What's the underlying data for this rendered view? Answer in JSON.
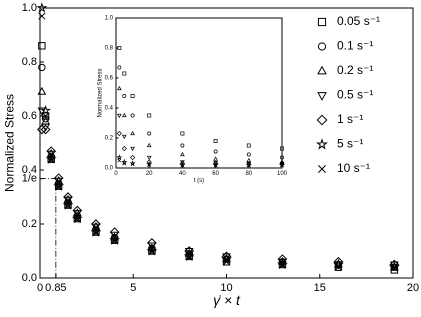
{
  "chart_data": [
    {
      "type": "scatter",
      "xlabel": "γ̇ × t",
      "ylabel": "Normalized Stress",
      "x": [
        0.1,
        0.3,
        0.6,
        1,
        1.5,
        2,
        3,
        4,
        6,
        8,
        10,
        13,
        16,
        19
      ],
      "xlim": [
        0,
        20
      ],
      "xticks": [
        0,
        0.85,
        5,
        10,
        15,
        20
      ],
      "ylim": [
        0,
        1.0
      ],
      "yticks": [
        {
          "value": 0,
          "label": "0.0"
        },
        {
          "value": 0.2,
          "label": "0.2"
        },
        {
          "value": 0.368,
          "label": "1/e"
        },
        {
          "value": 0.4,
          "label": "0.4"
        },
        {
          "value": 0.6,
          "label": "0.6"
        },
        {
          "value": 0.8,
          "label": "0.8"
        },
        {
          "value": 1.0,
          "label": "1.0"
        }
      ],
      "legend": "upper right",
      "series": [
        {
          "name": "0.05 s⁻¹",
          "marker": "square",
          "color": "#000",
          "values": [
            0.86,
            0.6,
            0.44,
            0.34,
            0.27,
            0.22,
            0.17,
            0.14,
            0.1,
            0.08,
            0.06,
            0.05,
            0.04,
            0.03
          ]
        },
        {
          "name": "0.1 s⁻¹",
          "marker": "circle",
          "color": "#000",
          "values": [
            0.78,
            0.59,
            0.45,
            0.35,
            0.28,
            0.23,
            0.18,
            0.15,
            0.11,
            0.09,
            0.07,
            0.06,
            0.05,
            0.04
          ]
        },
        {
          "name": "0.2 s⁻¹",
          "marker": "triangle-up",
          "color": "#000",
          "values": [
            0.69,
            0.58,
            0.46,
            0.36,
            0.29,
            0.24,
            0.19,
            0.15,
            0.11,
            0.09,
            0.07,
            0.06,
            0.05,
            0.04
          ]
        },
        {
          "name": "0.5 s⁻¹",
          "marker": "triangle-down",
          "color": "#000",
          "values": [
            0.62,
            0.56,
            0.46,
            0.36,
            0.29,
            0.24,
            0.19,
            0.16,
            0.12,
            0.1,
            0.08,
            0.06,
            0.05,
            0.05
          ]
        },
        {
          "name": "1 s⁻¹",
          "marker": "diamond",
          "color": "#000",
          "values": [
            0.55,
            0.55,
            0.47,
            0.37,
            0.3,
            0.25,
            0.2,
            0.17,
            0.13,
            0.1,
            0.08,
            0.07,
            0.06,
            0.05
          ]
        },
        {
          "name": "5 s⁻¹",
          "marker": "star",
          "color": "#000",
          "values": [
            1.0,
            0.62,
            0.44,
            0.34,
            0.27,
            0.22,
            0.17,
            0.14,
            0.1,
            0.08,
            0.07,
            0.05,
            0.05,
            0.04
          ]
        },
        {
          "name": "10 s⁻¹",
          "marker": "cross",
          "color": "#000",
          "values": [
            0.97,
            0.6,
            0.44,
            0.34,
            0.27,
            0.22,
            0.17,
            0.14,
            0.1,
            0.08,
            0.06,
            0.05,
            0.04,
            0.04
          ]
        }
      ]
    },
    {
      "type": "scatter",
      "xlabel": "t (s)",
      "ylabel": "Normalized Stress",
      "x": [
        2,
        5,
        10,
        20,
        40,
        60,
        80,
        100
      ],
      "xlim": [
        0,
        100
      ],
      "xticks": [
        0,
        20,
        40,
        60,
        80,
        100
      ],
      "ylim": [
        0,
        1.0
      ],
      "yticks": [
        {
          "value": 0,
          "label": "0.0"
        },
        {
          "value": 0.2,
          "label": "0.2"
        },
        {
          "value": 0.4,
          "label": "0.4"
        },
        {
          "value": 0.6,
          "label": "0.6"
        },
        {
          "value": 0.8,
          "label": "0.8"
        },
        {
          "value": 1.0,
          "label": "1.0"
        }
      ],
      "series": [
        {
          "marker": "square",
          "color": "#000",
          "values": [
            0.8,
            0.63,
            0.48,
            0.35,
            0.23,
            0.18,
            0.15,
            0.13
          ]
        },
        {
          "marker": "circle",
          "color": "#000",
          "values": [
            0.67,
            0.48,
            0.35,
            0.23,
            0.15,
            0.11,
            0.09,
            0.07
          ]
        },
        {
          "marker": "triangle-up",
          "color": "#000",
          "values": [
            0.53,
            0.35,
            0.23,
            0.15,
            0.09,
            0.06,
            0.05,
            0.04
          ]
        },
        {
          "marker": "triangle-down",
          "color": "#000",
          "values": [
            0.35,
            0.21,
            0.13,
            0.07,
            0.04,
            0.035,
            0.03,
            0.03
          ]
        },
        {
          "marker": "diamond",
          "color": "#000",
          "values": [
            0.23,
            0.13,
            0.07,
            0.04,
            0.03,
            0.03,
            0.025,
            0.025
          ]
        },
        {
          "marker": "star",
          "color": "#000",
          "values": [
            0.07,
            0.04,
            0.03,
            0.025,
            0.02,
            0.02,
            0.02,
            0.02
          ]
        },
        {
          "marker": "cross",
          "color": "#000",
          "values": [
            0.05,
            0.03,
            0.025,
            0.02,
            0.02,
            0.02,
            0.02,
            0.02
          ]
        }
      ]
    }
  ]
}
